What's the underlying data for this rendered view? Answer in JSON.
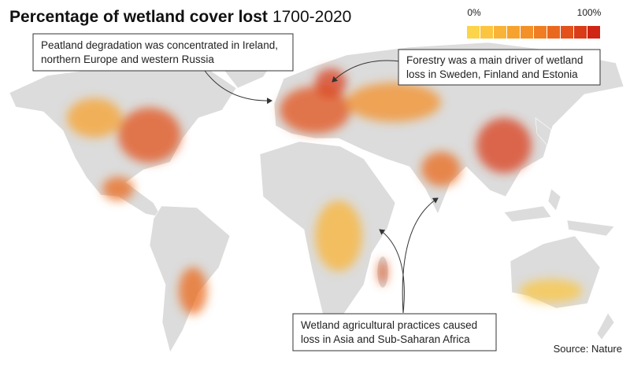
{
  "header": {
    "title": "Percentage of wetland cover lost",
    "period": "1700-2020"
  },
  "legend": {
    "min_label": "0%",
    "max_label": "100%",
    "colors": [
      "#fbd44a",
      "#fbc540",
      "#f9b437",
      "#f7a22f",
      "#f49028",
      "#f07d22",
      "#ea681d",
      "#e2521a",
      "#d93c17",
      "#cf2514"
    ]
  },
  "annotations": [
    {
      "lines": [
        "Peatland degradation was concentrated in Ireland,",
        "northern Europe and western Russia"
      ]
    },
    {
      "lines": [
        "Forestry was a main driver of wetland",
        "loss in Sweden, Finland and Estonia"
      ]
    },
    {
      "lines": [
        "Wetland agricultural practices caused",
        "loss in Asia and Sub-Saharan Africa"
      ]
    }
  ],
  "source": "Source: Nature"
}
